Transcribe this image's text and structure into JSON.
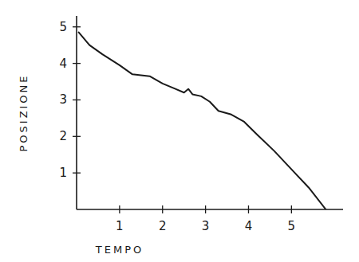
{
  "chart_data": {
    "type": "line",
    "x_label": "TEMPO",
    "y_label": "POSIZIONE",
    "x": [
      0.05,
      0.3,
      0.6,
      1.0,
      1.3,
      1.7,
      2.0,
      2.3,
      2.5,
      2.6,
      2.7,
      2.9,
      3.1,
      3.3,
      3.6,
      3.9,
      4.2,
      4.6,
      5.0,
      5.4,
      5.8
    ],
    "values": [
      4.85,
      4.5,
      4.25,
      3.95,
      3.7,
      3.65,
      3.45,
      3.3,
      3.2,
      3.3,
      3.15,
      3.1,
      2.95,
      2.7,
      2.6,
      2.4,
      2.05,
      1.6,
      1.1,
      0.6,
      0.0
    ],
    "color": "#1a1a1a",
    "xlim": [
      0,
      6.2
    ],
    "ylim": [
      0,
      5.3
    ],
    "xticks": [
      1,
      2,
      3,
      4,
      5
    ],
    "yticks": [
      1,
      2,
      3,
      4,
      5
    ],
    "grid": false
  }
}
